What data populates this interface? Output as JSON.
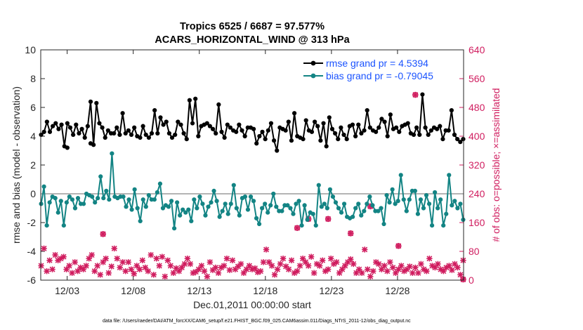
{
  "figure": {
    "title_line1": "Tropics 6525 / 6687 = 97.577%",
    "title_line2": "ACARS_HORIZONTAL_WIND @ 313 hPa",
    "xlabel": "Dec.01,2011 00:00:00 start",
    "ylabel_left": "rmse and bias (model - observation)",
    "ylabel_right": "# of obs: o=possible; ×=assimilated",
    "footnote": "data file: /Users/raeder/DAI/ATM_forcXX/CAM6_setup/f.e21.FHIST_BGC.f09_025.CAM6assim.011/Diags_NTrS_2011-12/obs_diag_output.nc"
  },
  "colors": {
    "rmse": "#000000",
    "bias": "#138484",
    "obs": "#d01d5f",
    "zero_line": "#b4b4b4",
    "legend_text": "#1a53ff"
  },
  "chart_data": {
    "type": "line",
    "x_unit": "days since Dec.01,2011 00:00",
    "xlim": [
      0,
      32
    ],
    "ylim_left": [
      -6,
      10
    ],
    "ylim_right": [
      0,
      640
    ],
    "xticks": [
      2,
      7,
      12,
      17,
      22,
      27
    ],
    "xtick_labels": [
      "12/03",
      "12/08",
      "12/13",
      "12/18",
      "12/23",
      "12/28"
    ],
    "yticks_left": [
      -6,
      -4,
      -2,
      0,
      2,
      4,
      6,
      8,
      10
    ],
    "yticks_right": [
      0,
      80,
      160,
      240,
      320,
      400,
      480,
      560,
      640
    ],
    "reference_line": 0,
    "legend_location": "top-right",
    "series": [
      {
        "name": "rmse grand pr = 4.5394",
        "axis": "left",
        "marker": "filled-circle",
        "values": [
          4.1,
          4.3,
          5.0,
          4.3,
          4.7,
          4.9,
          4.5,
          4.8,
          3.3,
          4.9,
          4.6,
          4.1,
          4.8,
          4.2,
          4.5,
          3.9,
          4.7,
          6.4,
          3.4,
          6.3,
          4.9,
          4.6,
          3.9,
          4.4,
          4.2,
          4.2,
          4.6,
          4.1,
          5.6,
          4.2,
          4.4,
          4.1,
          4.6,
          4.0,
          3.9,
          4.7,
          4.1,
          3.9,
          4.2,
          5.8,
          4.2,
          5.3,
          4.8,
          5.0,
          4.2,
          3.9,
          4.1,
          5.0,
          4.8,
          4.2,
          3.8,
          6.5,
          4.9,
          6.6,
          4.0,
          4.7,
          4.8,
          4.9,
          4.7,
          4.5,
          4.2,
          6.2,
          4.3,
          3.9,
          4.8,
          4.6,
          4.4,
          4.3,
          4.8,
          4.4,
          4.0,
          4.6,
          4.6,
          4.5,
          3.5,
          4.0,
          4.3,
          3.8,
          4.4,
          4.9,
          3.7,
          3.0,
          4.6,
          4.5,
          4.4,
          5.0,
          3.7,
          5.6,
          4.0,
          3.9,
          3.8,
          5.1,
          4.4,
          4.3,
          5.0,
          4.7,
          3.7,
          4.9,
          3.3,
          5.3,
          4.5,
          4.2,
          3.8,
          4.6,
          4.1,
          3.8,
          4.7,
          4.8,
          4.0,
          4.8,
          4.2,
          4.4,
          5.8,
          4.6,
          4.4,
          4.3,
          4.6,
          5.2,
          5.0,
          4.0,
          5.5,
          4.5,
          4.6,
          4.3,
          4.7,
          4.8,
          4.9,
          4.2,
          4.1,
          4.6,
          4.1,
          6.9,
          4.6,
          4.1,
          4.4,
          4.6,
          4.5,
          4.7,
          3.8,
          4.4,
          4.4,
          5.8,
          4.1,
          3.8,
          3.6,
          3.8
        ],
        "outliers": [
          {
            "index": 9,
            "value": 3.2
          },
          {
            "index": 17,
            "value": 3.5
          }
        ]
      },
      {
        "name": "bias grand pr = -0.79045",
        "axis": "left",
        "marker": "filled-circle",
        "values": [
          -0.7,
          0.5,
          -2.2,
          -0.6,
          -0.2,
          -0.3,
          -1.3,
          -0.5,
          -2.2,
          -0.6,
          -0.2,
          -0.4,
          -1.0,
          -0.3,
          -0.7,
          -0.7,
          0.0,
          -0.1,
          -0.2,
          -0.6,
          -0.3,
          1.2,
          -0.3,
          0.2,
          -0.4,
          2.8,
          -0.2,
          -0.3,
          -0.2,
          -0.2,
          -0.9,
          -0.4,
          -1.1,
          0.3,
          -1.0,
          -1.9,
          -0.4,
          -0.9,
          -0.1,
          -0.4,
          -0.4,
          0.1,
          0.7,
          -1.0,
          -0.8,
          -0.9,
          -0.5,
          -2.4,
          -0.6,
          -1.5,
          -1.1,
          -1.3,
          -1.1,
          -1.9,
          -0.4,
          -1.0,
          -0.2,
          -0.7,
          -1.5,
          -0.9,
          -0.6,
          0.2,
          -0.5,
          -1.6,
          -1.2,
          -0.7,
          -1.4,
          -0.7,
          0.6,
          -1.0,
          -1.5,
          -0.3,
          -0.2,
          -1.1,
          -0.2,
          -0.5,
          -1.7,
          -2.1,
          -1.0,
          -0.7,
          -1.3,
          -0.8,
          0.0,
          -0.9,
          -1.2,
          -1.2,
          -0.8,
          -0.8,
          -1.0,
          -1.4,
          -0.7,
          -0.5,
          -2.2,
          -0.8,
          -1.8,
          -1.3,
          -1.4,
          -2.2,
          0.6,
          -0.9,
          -0.7,
          -1.0,
          0.3,
          -0.2,
          -0.6,
          -1.0,
          -1.3,
          -0.7,
          -1.6,
          -1.7,
          -1.6,
          -1.0,
          -0.7,
          -1.5,
          -1.2,
          -0.7,
          -0.2,
          -0.8,
          -1.2,
          -1.2,
          -1.0,
          -2.1,
          -0.1,
          -0.6,
          0.3,
          -0.7,
          -0.5,
          1.3,
          -0.4,
          -1.2,
          -0.4,
          0.2,
          0.2,
          -1.4,
          -0.4,
          -1.0,
          -0.1,
          -0.7,
          -2.2,
          0.1,
          -1.0,
          -0.4,
          -2.2,
          -1.4,
          1.3,
          -0.8,
          -0.5,
          -1.0,
          -0.7,
          -1.8
        ]
      },
      {
        "name": "# of obs",
        "axis": "right",
        "marker": "x-and-circle",
        "values": [
          40,
          88,
          25,
          55,
          30,
          70,
          55,
          60,
          65,
          30,
          40,
          20,
          50,
          25,
          35,
          30,
          40,
          60,
          70,
          25,
          40,
          15,
          50,
          60,
          20,
          38,
          88,
          60,
          35,
          50,
          25,
          50,
          30,
          18,
          40,
          30,
          55,
          35,
          25,
          70,
          15,
          60,
          40,
          65,
          10,
          55,
          40,
          20,
          33,
          25,
          35,
          45,
          60,
          45,
          20,
          23,
          30,
          40,
          25,
          10,
          50,
          28,
          35,
          20,
          35,
          40,
          60,
          28,
          55,
          30,
          38,
          45,
          20,
          30,
          40,
          30,
          33,
          22,
          25,
          50,
          85,
          50,
          40,
          15,
          30,
          45,
          60,
          38,
          30,
          55,
          20,
          25,
          40,
          60,
          50,
          40,
          65,
          20,
          45,
          40,
          55,
          25,
          30,
          60,
          45,
          50,
          20,
          30,
          40,
          50,
          58,
          45,
          20,
          30,
          20,
          85,
          30,
          10,
          25,
          50,
          45,
          30,
          40,
          25,
          50,
          35,
          20,
          30,
          40,
          25,
          30,
          38,
          20,
          35,
          20,
          45,
          30,
          25,
          60,
          40,
          35,
          45,
          30,
          25,
          35,
          40,
          28,
          45,
          35,
          15,
          55
        ],
        "highlighted": [
          {
            "index": 22,
            "value": 128
          },
          {
            "index": 91,
            "value": 145
          },
          {
            "index": 95,
            "value": 170
          },
          {
            "index": 102,
            "value": 170
          },
          {
            "index": 110,
            "value": 130
          },
          {
            "index": 117,
            "value": 205
          },
          {
            "index": 127,
            "value": 95
          },
          {
            "index": 133,
            "value": 515
          },
          {
            "index": 150,
            "value": 2
          }
        ]
      }
    ]
  }
}
